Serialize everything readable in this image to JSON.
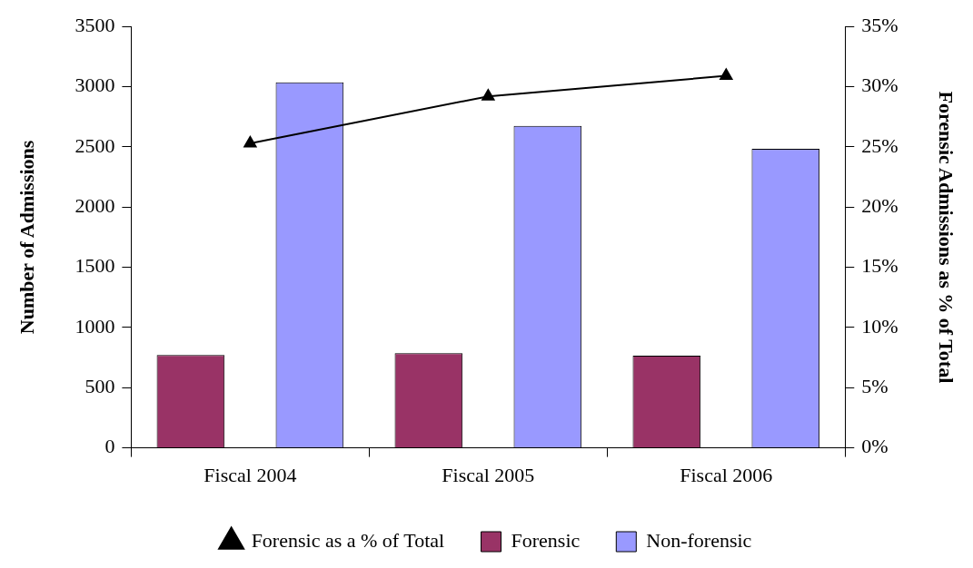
{
  "chart_data": {
    "type": "bar",
    "ylabel": "Number of Admissions",
    "y2label": "Forensic Admissions as % of Total",
    "categories": [
      "Fiscal 2004",
      "Fiscal 2005",
      "Fiscal 2006"
    ],
    "series": [
      {
        "name": "Forensic",
        "color": "#993366",
        "values": [
          772,
          786,
          765
        ]
      },
      {
        "name": "Non-forensic",
        "color": "#9999ff",
        "values": [
          3036,
          2675,
          2485
        ]
      },
      {
        "name": "Forensic as a % of Total",
        "type": "line",
        "axis": "y2",
        "color": "#000000",
        "marker": "triangle",
        "values": [
          25.3,
          29.2,
          30.9
        ]
      }
    ],
    "ylim": [
      0,
      3500
    ],
    "yticks": [
      0,
      500,
      1000,
      1500,
      2000,
      2500,
      3000,
      3500
    ],
    "y2lim": [
      0,
      35
    ],
    "y2ticks": [
      {
        "value": 0,
        "label": "0%"
      },
      {
        "value": 5,
        "label": "5%"
      },
      {
        "value": 10,
        "label": "10%"
      },
      {
        "value": 15,
        "label": "15%"
      },
      {
        "value": 20,
        "label": "20%"
      },
      {
        "value": 25,
        "label": "25%"
      },
      {
        "value": 30,
        "label": "30%"
      },
      {
        "value": 35,
        "label": "35%"
      }
    ],
    "grid": false,
    "legend": "bottom"
  }
}
